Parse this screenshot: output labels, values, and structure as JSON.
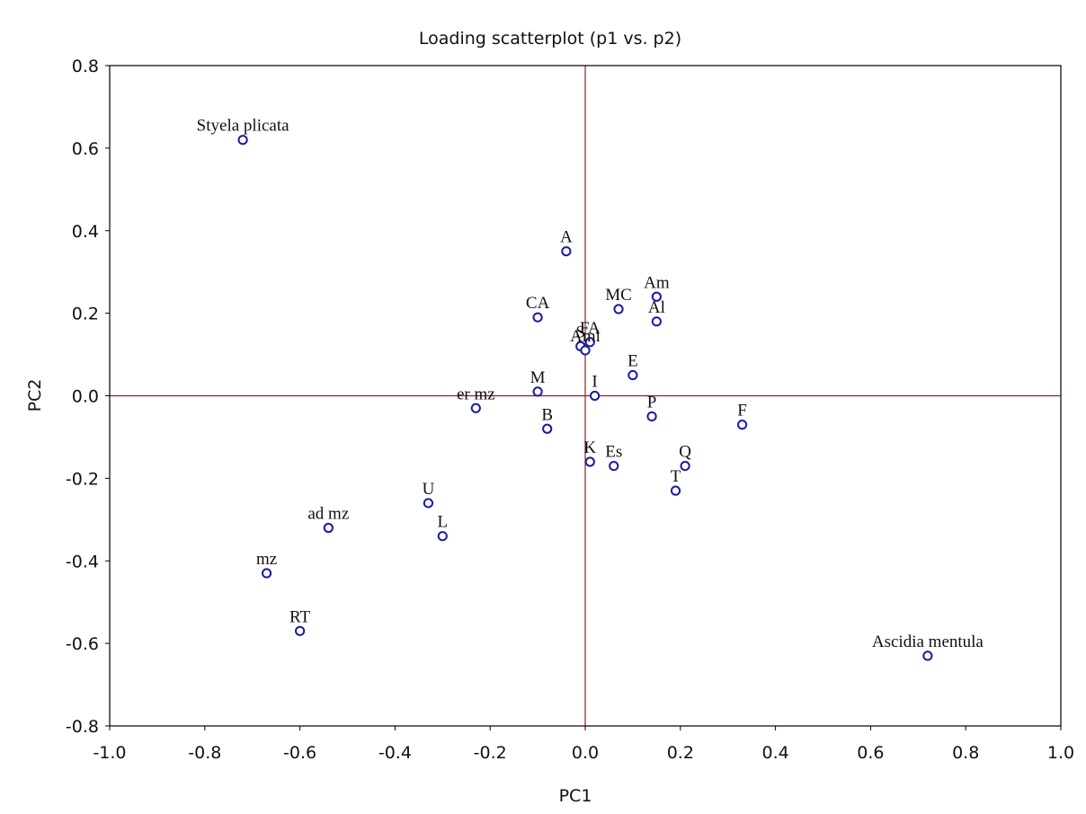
{
  "chart_data": {
    "type": "scatter",
    "title": "Loading scatterplot (p1 vs. p2)",
    "xlabel": "PC1",
    "ylabel": "PC2",
    "xlim": [
      -1.0,
      1.0
    ],
    "ylim": [
      -0.8,
      0.8
    ],
    "xticks": [
      "-1.0",
      "-0.8",
      "-0.6",
      "-0.4",
      "-0.2",
      "0.0",
      "0.2",
      "0.4",
      "0.6",
      "0.8",
      "1.0"
    ],
    "yticks": [
      "0.8",
      "0.6",
      "0.4",
      "0.2",
      "0.0",
      "-0.2",
      "-0.4",
      "-0.6",
      "-0.8"
    ],
    "reference_lines": {
      "x": 0,
      "y": 0
    },
    "grid": false,
    "colors": {
      "marker": "#1a1aa6",
      "reference": "#a01818",
      "frame": "#000000"
    },
    "points": [
      {
        "label": "Styela plicata",
        "x": -0.72,
        "y": 0.62
      },
      {
        "label": "A",
        "x": -0.04,
        "y": 0.35
      },
      {
        "label": "CA",
        "x": -0.1,
        "y": 0.19
      },
      {
        "label": "MC",
        "x": 0.07,
        "y": 0.21
      },
      {
        "label": "Am",
        "x": 0.15,
        "y": 0.24
      },
      {
        "label": "Al",
        "x": 0.15,
        "y": 0.18
      },
      {
        "label": "S",
        "x": -0.01,
        "y": 0.12
      },
      {
        "label": "FA",
        "x": 0.01,
        "y": 0.13
      },
      {
        "label": "Ami",
        "x": 0.0,
        "y": 0.11
      },
      {
        "label": "E",
        "x": 0.1,
        "y": 0.05
      },
      {
        "label": "M",
        "x": -0.1,
        "y": 0.01
      },
      {
        "label": "I",
        "x": 0.02,
        "y": 0.0
      },
      {
        "label": "er mz",
        "x": -0.23,
        "y": -0.03
      },
      {
        "label": "B",
        "x": -0.08,
        "y": -0.08
      },
      {
        "label": "P",
        "x": 0.14,
        "y": -0.05
      },
      {
        "label": "F",
        "x": 0.33,
        "y": -0.07
      },
      {
        "label": "K",
        "x": 0.01,
        "y": -0.16
      },
      {
        "label": "Es",
        "x": 0.06,
        "y": -0.17
      },
      {
        "label": "Q",
        "x": 0.21,
        "y": -0.17
      },
      {
        "label": "T",
        "x": 0.19,
        "y": -0.23
      },
      {
        "label": "U",
        "x": -0.33,
        "y": -0.26
      },
      {
        "label": "L",
        "x": -0.3,
        "y": -0.34
      },
      {
        "label": "ad mz",
        "x": -0.54,
        "y": -0.32
      },
      {
        "label": "mz",
        "x": -0.67,
        "y": -0.43
      },
      {
        "label": "RT",
        "x": -0.6,
        "y": -0.57
      },
      {
        "label": "Ascidia mentula",
        "x": 0.72,
        "y": -0.63
      }
    ]
  }
}
